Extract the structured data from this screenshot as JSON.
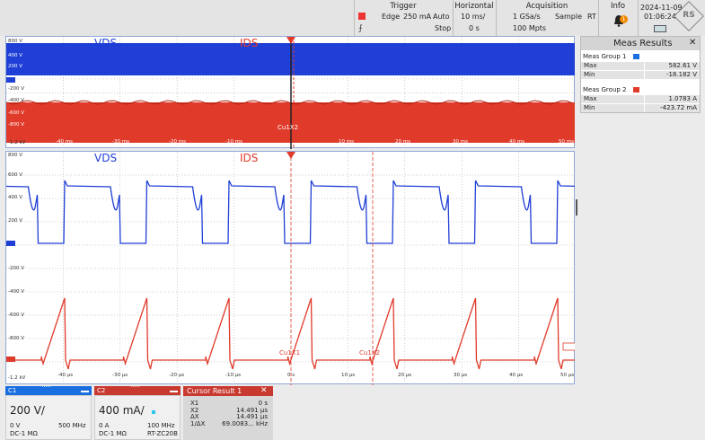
{
  "trigger": {
    "header": "Trigger",
    "type": "Edge",
    "level": "250 mA",
    "mode": "Auto",
    "state": "Stop"
  },
  "horizontal": {
    "header": "Horizontal",
    "scale": "10 ms/",
    "position": "0 s"
  },
  "acquisition": {
    "header": "Acquisition",
    "rate": "1 GSa/s",
    "mode": "Sample",
    "rt": "RT",
    "points": "100 Mpts"
  },
  "info": {
    "header": "Info",
    "badge": "1"
  },
  "datetime": {
    "date": "2024-11-09",
    "time": "01:06:24"
  },
  "logo_text": "RS",
  "colors": {
    "ch1": "#1f3fd6",
    "ch2": "#e03a2a",
    "grid": "#a0a0a0",
    "panel_blue": "#1a6fe0"
  },
  "diagram1": {
    "labels": {
      "vds": "VDS",
      "ids": "IDS",
      "cursor": "Cu1X2"
    },
    "yticks": [
      "800 V",
      "400 V",
      "200 V",
      "-200 V",
      "-400 V",
      "-600 V",
      "-800 V",
      "-1.2 kV"
    ],
    "xticks": [
      "-40 ms",
      "-30 ms",
      "-20 ms",
      "-10 ms",
      "10 ms",
      "20 ms",
      "30 ms",
      "40 ms",
      "50 ms"
    ]
  },
  "diagram2": {
    "labels": {
      "vds": "VDS",
      "ids": "IDS",
      "cursor1": "Cu1X1",
      "cursor2": "Cu1X2"
    },
    "yticks": [
      "800 V",
      "600 V",
      "400 V",
      "200 V",
      "-200 V",
      "-400 V",
      "-600 V",
      "-800 V",
      "-1.2 kV"
    ],
    "xticks": [
      "-40 µs",
      "-30 µs",
      "-20 µs",
      "-10 µs",
      "0 s",
      "10 µs",
      "20 µs",
      "30 µs",
      "40 µs",
      "50 µs"
    ]
  },
  "meas": {
    "title": "Meas Results",
    "close": "✕",
    "group1": {
      "name": "Meas Group 1",
      "max_label": "Max",
      "max": "582.61 V",
      "min_label": "Min",
      "min": "-18.182 V"
    },
    "group2": {
      "name": "Meas Group 2",
      "max_label": "Max",
      "max": "1.0783 A",
      "min_label": "Min",
      "min": "-423.72 mA"
    }
  },
  "ch1": {
    "name": "C1",
    "scale": "200 V/",
    "offset": "0 V",
    "bandwidth": "500 MHz",
    "coupling": "DC-1 MΩ"
  },
  "ch2": {
    "name": "C2",
    "scale": "400 mA/",
    "offset": "0 A",
    "bandwidth": "100 MHz",
    "coupling": "DC-1 MΩ",
    "probe": "RT-ZC20B"
  },
  "cursor_result": {
    "title": "Cursor Result 1",
    "close": "✕",
    "rows": [
      {
        "k": "X1",
        "v": "0 s"
      },
      {
        "k": "X2",
        "v": "14.491 µs"
      },
      {
        "k": "ΔX",
        "v": "14.491 µs"
      },
      {
        "k": "1/ΔX",
        "v": "69.0083... kHz"
      }
    ]
  }
}
